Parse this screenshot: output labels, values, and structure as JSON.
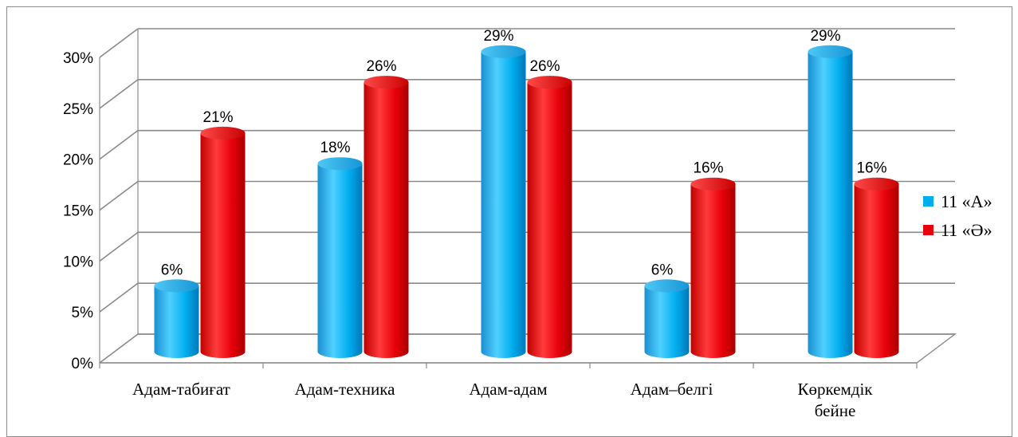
{
  "chart_data": {
    "type": "bar",
    "categories": [
      "Адам-табиғат",
      "Адам-техника",
      "Адам-адам",
      "Адам–белгі",
      "Көркемдік бейне"
    ],
    "category_lines": [
      [
        "Адам-табиғат"
      ],
      [
        "Адам-техника"
      ],
      [
        "Адам-адам"
      ],
      [
        "Адам–белгі"
      ],
      [
        "Көркемдік",
        "бейне"
      ]
    ],
    "series": [
      {
        "name": "11 «А»",
        "values": [
          6,
          18,
          29,
          6,
          29
        ],
        "labels": [
          "6%",
          "18%",
          "29%",
          "6%",
          "29%"
        ],
        "color": "#00aeef"
      },
      {
        "name": "11 «Ә»",
        "values": [
          21,
          26,
          26,
          16,
          16
        ],
        "labels": [
          "21%",
          "26%",
          "26%",
          "16%",
          "16%"
        ],
        "color": "#e8000a"
      }
    ],
    "yticks": [
      {
        "value": 0,
        "label": "0%"
      },
      {
        "value": 5,
        "label": "5%"
      },
      {
        "value": 10,
        "label": "10%"
      },
      {
        "value": 15,
        "label": "15%"
      },
      {
        "value": 20,
        "label": "20%"
      },
      {
        "value": 25,
        "label": "25%"
      },
      {
        "value": 30,
        "label": "30%"
      }
    ],
    "ylim": [
      0,
      30
    ],
    "grid": true,
    "legend": "right",
    "style": "3d-cylinder"
  }
}
